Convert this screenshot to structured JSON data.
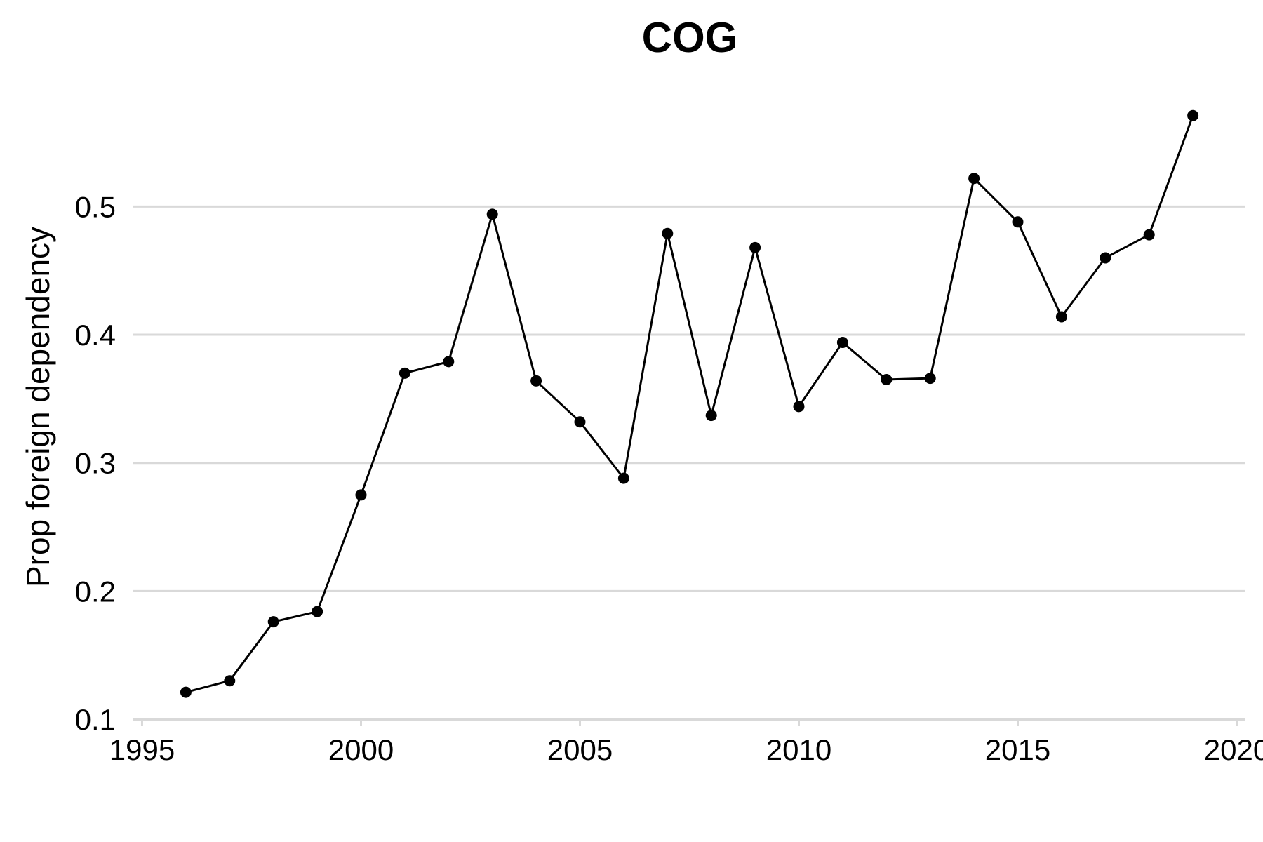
{
  "chart_data": {
    "type": "line",
    "title": "COG",
    "xlabel": "",
    "ylabel": "Prop foreign dependency",
    "xlim": [
      1994.8,
      2020.2
    ],
    "ylim": [
      0.1,
      0.59
    ],
    "x_ticks": [
      1995,
      2000,
      2005,
      2010,
      2015,
      2020
    ],
    "x_tick_labels": [
      "1995",
      "2000",
      "2005",
      "2010",
      "2015",
      "2020"
    ],
    "y_ticks": [
      0.1,
      0.2,
      0.3,
      0.4,
      0.5
    ],
    "y_tick_labels": [
      "0.1",
      "0.2",
      "0.3",
      "0.4",
      "0.5"
    ],
    "grid": "horizontal",
    "line_color": "#000000",
    "grid_color": "#d9d9d9",
    "x": [
      1996,
      1997,
      1998,
      1999,
      2000,
      2001,
      2002,
      2003,
      2004,
      2005,
      2006,
      2007,
      2008,
      2009,
      2010,
      2011,
      2012,
      2013,
      2014,
      2015,
      2016,
      2017,
      2018,
      2019
    ],
    "y": [
      0.121,
      0.13,
      0.176,
      0.184,
      0.275,
      0.37,
      0.379,
      0.494,
      0.364,
      0.332,
      0.288,
      0.479,
      0.337,
      0.468,
      0.344,
      0.394,
      0.365,
      0.366,
      0.522,
      0.488,
      0.414,
      0.46,
      0.478,
      0.571
    ]
  }
}
